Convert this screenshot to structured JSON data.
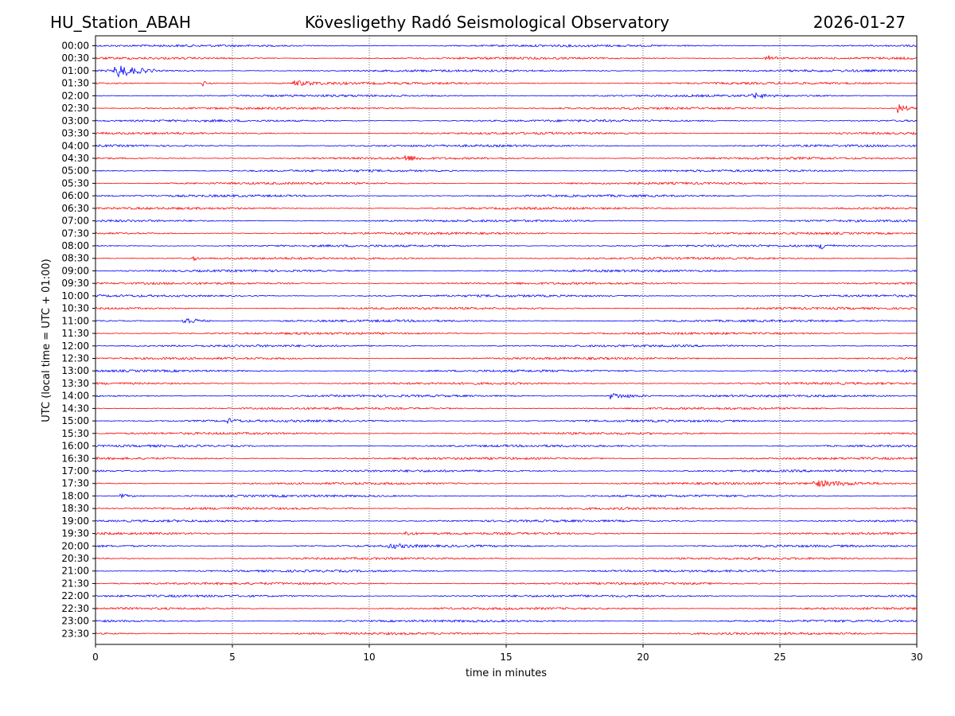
{
  "chart_data": {
    "type": "line",
    "title_left": "HU_Station_ABAH",
    "title": "Kövesligethy Radó Seismological Observatory",
    "title_right": "2026-01-27",
    "xlabel": "time in minutes",
    "ylabel": "UTC (local time = UTC + 01:00)",
    "xlim": [
      0,
      30
    ],
    "x_ticks": [
      0,
      5,
      10,
      15,
      20,
      25,
      30
    ],
    "x_tick_labels": [
      "0",
      "5",
      "10",
      "15",
      "20",
      "25",
      "30"
    ],
    "vertical_gridlines": [
      5,
      10,
      15,
      20,
      25
    ],
    "grid_style": "dotted",
    "row_labels": [
      "00:00",
      "00:30",
      "01:00",
      "01:30",
      "02:00",
      "02:30",
      "03:00",
      "03:30",
      "04:00",
      "04:30",
      "05:00",
      "05:30",
      "06:00",
      "06:30",
      "07:00",
      "07:30",
      "08:00",
      "08:30",
      "09:00",
      "09:30",
      "10:00",
      "10:30",
      "11:00",
      "11:30",
      "12:00",
      "12:30",
      "13:00",
      "13:30",
      "14:00",
      "14:30",
      "15:00",
      "15:30",
      "16:00",
      "16:30",
      "17:00",
      "17:30",
      "18:00",
      "18:30",
      "19:00",
      "19:30",
      "20:00",
      "20:30",
      "21:00",
      "21:30",
      "22:00",
      "22:30",
      "23:00",
      "23:30"
    ],
    "trace_colors": [
      "#0000ff",
      "#ff0000"
    ],
    "base_noise": 0.9,
    "events": [
      {
        "row": "00:30",
        "minute": 24.5,
        "duration": 0.8,
        "amplitude": 4
      },
      {
        "row": "01:00",
        "minute": 0.7,
        "duration": 1.5,
        "amplitude": 9
      },
      {
        "row": "01:30",
        "minute": 3.9,
        "duration": 0.4,
        "amplitude": 4
      },
      {
        "row": "01:30",
        "minute": 7.2,
        "duration": 2.0,
        "amplitude": 3
      },
      {
        "row": "02:00",
        "minute": 24.0,
        "duration": 1.0,
        "amplitude": 3
      },
      {
        "row": "02:30",
        "minute": 29.3,
        "duration": 0.7,
        "amplitude": 6
      },
      {
        "row": "04:30",
        "minute": 11.3,
        "duration": 0.7,
        "amplitude": 4
      },
      {
        "row": "08:00",
        "minute": 26.5,
        "duration": 0.5,
        "amplitude": 5
      },
      {
        "row": "08:30",
        "minute": 3.6,
        "duration": 0.3,
        "amplitude": 3
      },
      {
        "row": "11:00",
        "minute": 3.2,
        "duration": 1.0,
        "amplitude": 6
      },
      {
        "row": "14:00",
        "minute": 18.8,
        "duration": 1.7,
        "amplitude": 4
      },
      {
        "row": "15:00",
        "minute": 4.8,
        "duration": 0.6,
        "amplitude": 3
      },
      {
        "row": "17:30",
        "minute": 26.2,
        "duration": 3.6,
        "amplitude": 3.5
      },
      {
        "row": "18:00",
        "minute": 0.9,
        "duration": 0.9,
        "amplitude": 2.5
      },
      {
        "row": "19:30",
        "minute": 11.3,
        "duration": 0.5,
        "amplitude": 3
      },
      {
        "row": "20:00",
        "minute": 10.7,
        "duration": 1.3,
        "amplitude": 3
      }
    ]
  }
}
